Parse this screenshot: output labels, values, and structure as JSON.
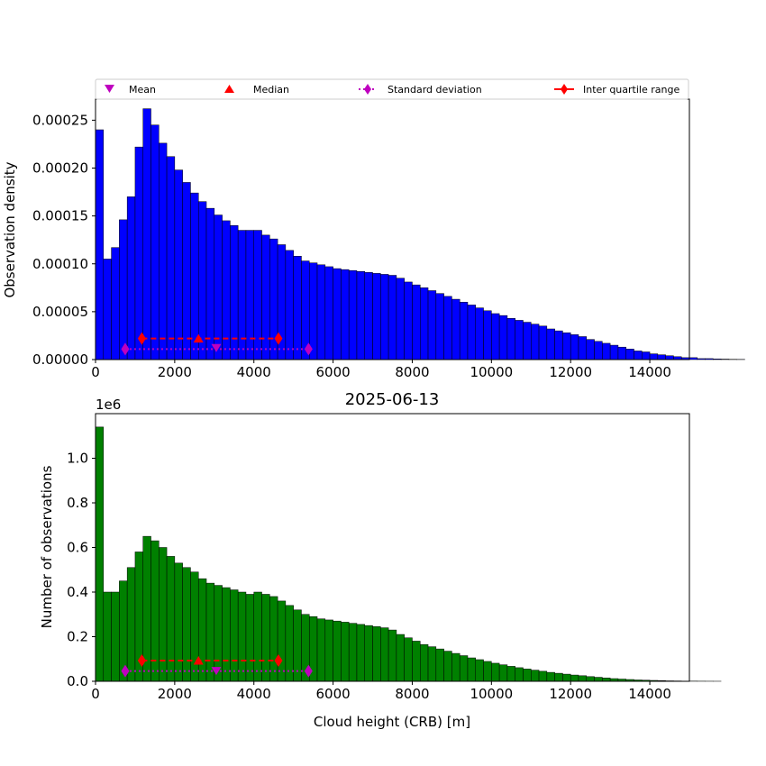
{
  "legend": {
    "mean": "Mean",
    "median": "Median",
    "std": "Standard deviation",
    "iqr": "Inter quartile range"
  },
  "colors": {
    "top_bars": "#0000ff",
    "bottom_bars": "#008000",
    "mean_marker": "#bf00bf",
    "iqr_marker": "#ff0000"
  },
  "chart_data": [
    {
      "type": "bar",
      "title": "",
      "xlabel": "",
      "ylabel": "Observation density",
      "xlim": [
        0,
        15000
      ],
      "ylim": [
        0,
        0.000272
      ],
      "bin_width": 200,
      "x_ticks": [
        "0",
        "2000",
        "4000",
        "6000",
        "8000",
        "10000",
        "12000",
        "14000"
      ],
      "y_ticks": [
        "0.00000",
        "0.00005",
        "0.00010",
        "0.00015",
        "0.00020",
        "0.00025"
      ],
      "values": [
        0.00024,
        0.000105,
        0.000117,
        0.000146,
        0.00017,
        0.000222,
        0.000262,
        0.000245,
        0.000226,
        0.000212,
        0.000198,
        0.000185,
        0.000174,
        0.000165,
        0.000158,
        0.000151,
        0.000145,
        0.00014,
        0.000135,
        0.000135,
        0.000135,
        0.00013,
        0.000126,
        0.00012,
        0.000114,
        0.000108,
        0.000103,
        0.000101,
        9.9e-05,
        9.7e-05,
        9.5e-05,
        9.4e-05,
        9.3e-05,
        9.2e-05,
        9.1e-05,
        9e-05,
        8.9e-05,
        8.8e-05,
        8.5e-05,
        8.1e-05,
        7.8e-05,
        7.5e-05,
        7.2e-05,
        6.9e-05,
        6.6e-05,
        6.3e-05,
        6e-05,
        5.7e-05,
        5.4e-05,
        5.1e-05,
        4.8e-05,
        4.6e-05,
        4.3e-05,
        4.1e-05,
        3.9e-05,
        3.7e-05,
        3.5e-05,
        3.2e-05,
        3e-05,
        2.8e-05,
        2.6e-05,
        2.4e-05,
        2.1e-05,
        1.9e-05,
        1.7e-05,
        1.5e-05,
        1.3e-05,
        1.1e-05,
        9e-06,
        8e-06,
        6e-06,
        5e-06,
        4e-06,
        3e-06,
        2e-06,
        2e-06,
        1e-06,
        1e-06,
        7e-07,
        5e-07,
        3e-07,
        2e-07
      ],
      "stats": {
        "mean": 3050,
        "mean_y": 1.2e-05,
        "median": 2600,
        "median_y": 2.2e-05,
        "std": [
          750,
          5380
        ],
        "std_y": 1.1e-05,
        "iqr": [
          1170,
          4620
        ],
        "iqr_y": 2.2e-05
      },
      "legend_position": "top"
    },
    {
      "type": "bar",
      "title": "2025-06-13",
      "xlabel": "Cloud height (CRB) [m]",
      "ylabel": "Number of observations",
      "offset_label": "1e6",
      "xlim": [
        0,
        15000
      ],
      "ylim": [
        0,
        1.2
      ],
      "bin_width": 200,
      "x_ticks": [
        "0",
        "2000",
        "4000",
        "6000",
        "8000",
        "10000",
        "12000",
        "14000"
      ],
      "y_ticks": [
        "0.0",
        "0.2",
        "0.4",
        "0.6",
        "0.8",
        "1.0"
      ],
      "values": [
        1.14,
        0.4,
        0.4,
        0.45,
        0.51,
        0.58,
        0.65,
        0.63,
        0.6,
        0.56,
        0.53,
        0.51,
        0.49,
        0.46,
        0.44,
        0.43,
        0.42,
        0.41,
        0.4,
        0.39,
        0.4,
        0.39,
        0.38,
        0.36,
        0.34,
        0.32,
        0.3,
        0.29,
        0.28,
        0.275,
        0.27,
        0.265,
        0.26,
        0.255,
        0.25,
        0.245,
        0.24,
        0.23,
        0.21,
        0.195,
        0.18,
        0.165,
        0.155,
        0.145,
        0.135,
        0.125,
        0.115,
        0.105,
        0.097,
        0.089,
        0.081,
        0.074,
        0.067,
        0.061,
        0.055,
        0.05,
        0.045,
        0.04,
        0.036,
        0.032,
        0.028,
        0.025,
        0.021,
        0.018,
        0.015,
        0.012,
        0.01,
        0.008,
        0.006,
        0.005,
        0.004,
        0.003,
        0.002,
        0.0015,
        0.001,
        0.0008,
        0.0005,
        0.0003,
        0.0002
      ],
      "stats": {
        "mean": 3050,
        "mean_y": 0.046,
        "median": 2600,
        "median_y": 0.093,
        "std": [
          750,
          5380
        ],
        "std_y": 0.046,
        "iqr": [
          1170,
          4620
        ],
        "iqr_y": 0.093
      }
    }
  ]
}
